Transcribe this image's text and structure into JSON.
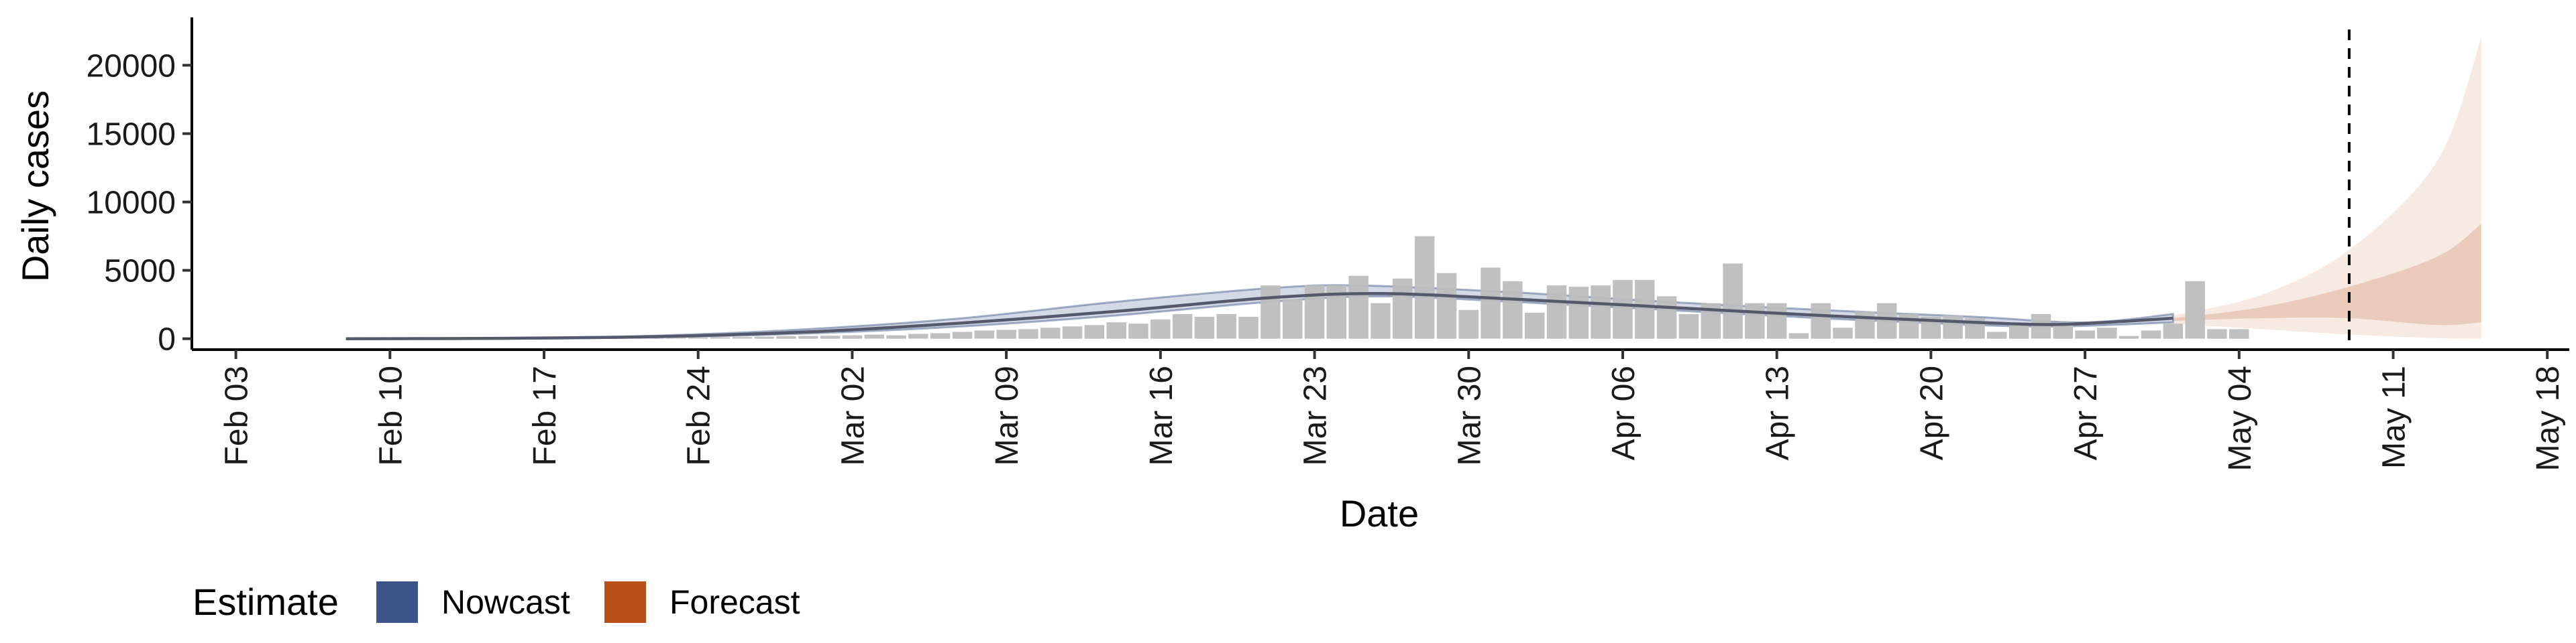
{
  "chart_data": {
    "type": "bar",
    "xlabel": "Date",
    "ylabel": "Daily cases",
    "x_range": [
      "2020-02-01",
      "2020-05-19"
    ],
    "ylim": [
      -800,
      23500
    ],
    "x_ticks": [
      {
        "date": "2020-02-03",
        "label": "Feb 03"
      },
      {
        "date": "2020-02-10",
        "label": "Feb 10"
      },
      {
        "date": "2020-02-17",
        "label": "Feb 17"
      },
      {
        "date": "2020-02-24",
        "label": "Feb 24"
      },
      {
        "date": "2020-03-02",
        "label": "Mar 02"
      },
      {
        "date": "2020-03-09",
        "label": "Mar 09"
      },
      {
        "date": "2020-03-16",
        "label": "Mar 16"
      },
      {
        "date": "2020-03-23",
        "label": "Mar 23"
      },
      {
        "date": "2020-03-30",
        "label": "Mar 30"
      },
      {
        "date": "2020-04-06",
        "label": "Apr 06"
      },
      {
        "date": "2020-04-13",
        "label": "Apr 13"
      },
      {
        "date": "2020-04-20",
        "label": "Apr 20"
      },
      {
        "date": "2020-04-27",
        "label": "Apr 27"
      },
      {
        "date": "2020-05-04",
        "label": "May 04"
      },
      {
        "date": "2020-05-11",
        "label": "May 11"
      },
      {
        "date": "2020-05-18",
        "label": "May 18"
      }
    ],
    "y_ticks": [
      {
        "value": 0,
        "label": "0"
      },
      {
        "value": 5000,
        "label": "5000"
      },
      {
        "value": 10000,
        "label": "10000"
      },
      {
        "value": 15000,
        "label": "15000"
      },
      {
        "value": 20000,
        "label": "20000"
      }
    ],
    "bars_start_date": "2020-02-15",
    "observed_cases": [
      5,
      5,
      10,
      10,
      20,
      30,
      40,
      50,
      60,
      80,
      100,
      120,
      150,
      180,
      200,
      220,
      250,
      300,
      250,
      350,
      400,
      500,
      600,
      650,
      700,
      800,
      900,
      1000,
      1200,
      1100,
      1400,
      1800,
      1600,
      1800,
      1600,
      3900,
      2900,
      3900,
      3900,
      4600,
      2600,
      4400,
      7500,
      4800,
      2100,
      5200,
      4200,
      1900,
      3900,
      3800,
      3900,
      4300,
      4300,
      3100,
      1800,
      2600,
      5500,
      2600,
      2600,
      400,
      2600,
      800,
      2000,
      2600,
      1800,
      1600,
      1700,
      1500,
      500,
      1200,
      1800,
      1200,
      600,
      800,
      200,
      600,
      1100,
      4200,
      700,
      700
    ],
    "series": [
      {
        "name": "Nowcast",
        "color": "#3c5488",
        "median": [
          [
            "2020-02-08",
            0
          ],
          [
            "2020-02-15",
            30
          ],
          [
            "2020-02-22",
            150
          ],
          [
            "2020-02-29",
            500
          ],
          [
            "2020-03-07",
            1150
          ],
          [
            "2020-03-14",
            2000
          ],
          [
            "2020-03-21",
            3000
          ],
          [
            "2020-03-26",
            3300
          ],
          [
            "2020-04-01",
            2900
          ],
          [
            "2020-04-08",
            2300
          ],
          [
            "2020-04-15",
            1700
          ],
          [
            "2020-04-22",
            1200
          ],
          [
            "2020-04-26",
            1050
          ],
          [
            "2020-05-01",
            1500
          ]
        ],
        "band_upper": [
          [
            "2020-02-08",
            0
          ],
          [
            "2020-02-15",
            50
          ],
          [
            "2020-02-22",
            220
          ],
          [
            "2020-02-29",
            700
          ],
          [
            "2020-03-07",
            1500
          ],
          [
            "2020-03-14",
            2700
          ],
          [
            "2020-03-21",
            3700
          ],
          [
            "2020-03-25",
            3900
          ],
          [
            "2020-04-01",
            3400
          ],
          [
            "2020-04-08",
            2700
          ],
          [
            "2020-04-15",
            2100
          ],
          [
            "2020-04-22",
            1600
          ],
          [
            "2020-04-27",
            1200
          ],
          [
            "2020-05-01",
            1800
          ]
        ],
        "band_lower": [
          [
            "2020-02-08",
            0
          ],
          [
            "2020-02-15",
            20
          ],
          [
            "2020-02-22",
            100
          ],
          [
            "2020-02-29",
            380
          ],
          [
            "2020-03-07",
            900
          ],
          [
            "2020-03-14",
            1700
          ],
          [
            "2020-03-21",
            2700
          ],
          [
            "2020-03-26",
            3100
          ],
          [
            "2020-04-01",
            2700
          ],
          [
            "2020-04-08",
            2100
          ],
          [
            "2020-04-15",
            1500
          ],
          [
            "2020-04-22",
            1000
          ],
          [
            "2020-04-26",
            900
          ],
          [
            "2020-05-01",
            1200
          ]
        ]
      },
      {
        "name": "Forecast",
        "color": "#bb4f1a",
        "outer_upper": [
          [
            "2020-05-01",
            1700
          ],
          [
            "2020-05-05",
            3200
          ],
          [
            "2020-05-09",
            6500
          ],
          [
            "2020-05-13",
            13000
          ],
          [
            "2020-05-15",
            22000
          ]
        ],
        "outer_lower": [
          [
            "2020-05-01",
            1100
          ],
          [
            "2020-05-05",
            700
          ],
          [
            "2020-05-09",
            300
          ],
          [
            "2020-05-13",
            50
          ],
          [
            "2020-05-15",
            0
          ]
        ],
        "inner_upper": [
          [
            "2020-05-01",
            1500
          ],
          [
            "2020-05-05",
            2300
          ],
          [
            "2020-05-09",
            3800
          ],
          [
            "2020-05-13",
            6000
          ],
          [
            "2020-05-15",
            8400
          ]
        ],
        "inner_lower": [
          [
            "2020-05-01",
            1300
          ],
          [
            "2020-05-05",
            1500
          ],
          [
            "2020-05-09",
            1500
          ],
          [
            "2020-05-13",
            1000
          ],
          [
            "2020-05-15",
            1200
          ]
        ]
      }
    ],
    "vline_date": "2020-05-09",
    "legend": {
      "title": "Estimate",
      "position": "bottom-left",
      "items": [
        {
          "label": "Nowcast",
          "color": "#3c5488"
        },
        {
          "label": "Forecast",
          "color": "#bb4f1a"
        }
      ]
    },
    "colors": {
      "bars": "#bdbdbd",
      "median_line": "#55596b",
      "axis": "#000000"
    }
  }
}
